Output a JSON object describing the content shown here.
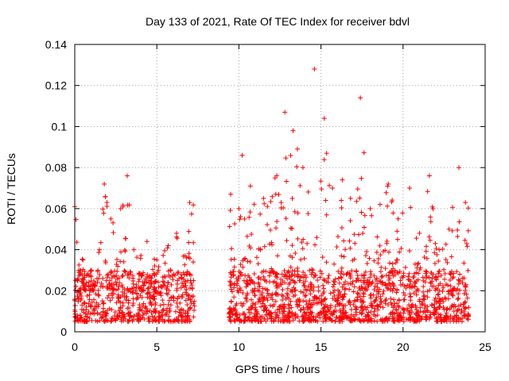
{
  "chart_data": {
    "type": "scatter",
    "title": "Day 133 of 2021, Rate Of TEC Index for receiver bdvl",
    "xlabel": "GPS time / hours",
    "ylabel": "ROTI / TECUs",
    "xlim": [
      0,
      24
    ],
    "ylim": [
      0,
      0.14
    ],
    "xticks": [
      0,
      5,
      10,
      15,
      20,
      25
    ],
    "xtick_labels": [
      "0",
      "5",
      "10",
      "15",
      "20",
      "25"
    ],
    "yticks": [
      0,
      0.02,
      0.04,
      0.06,
      0.08,
      0.1,
      0.12,
      0.14
    ],
    "ytick_labels": [
      "0",
      "0.02",
      "0.04",
      "0.06",
      "0.08",
      "0.1",
      "0.12",
      "0.14"
    ],
    "grid": true,
    "marker": "plus",
    "color": "#ff0000",
    "data_gap_hours": [
      7.3,
      9.4
    ],
    "approx_envelope": [
      {
        "x": 0.0,
        "y": 0.061
      },
      {
        "x": 0.5,
        "y": 0.035
      },
      {
        "x": 1.0,
        "y": 0.03
      },
      {
        "x": 1.5,
        "y": 0.04
      },
      {
        "x": 1.8,
        "y": 0.072
      },
      {
        "x": 2.2,
        "y": 0.055
      },
      {
        "x": 2.8,
        "y": 0.06
      },
      {
        "x": 3.2,
        "y": 0.076
      },
      {
        "x": 3.6,
        "y": 0.04
      },
      {
        "x": 4.4,
        "y": 0.044
      },
      {
        "x": 5.0,
        "y": 0.035
      },
      {
        "x": 5.7,
        "y": 0.042
      },
      {
        "x": 6.2,
        "y": 0.048
      },
      {
        "x": 6.8,
        "y": 0.036
      },
      {
        "x": 7.0,
        "y": 0.063
      },
      {
        "x": 9.5,
        "y": 0.067
      },
      {
        "x": 10.0,
        "y": 0.06
      },
      {
        "x": 10.2,
        "y": 0.086
      },
      {
        "x": 10.7,
        "y": 0.071
      },
      {
        "x": 11.5,
        "y": 0.065
      },
      {
        "x": 12.2,
        "y": 0.075
      },
      {
        "x": 12.8,
        "y": 0.107
      },
      {
        "x": 13.3,
        "y": 0.098
      },
      {
        "x": 13.9,
        "y": 0.08
      },
      {
        "x": 14.6,
        "y": 0.128
      },
      {
        "x": 15.2,
        "y": 0.104
      },
      {
        "x": 15.7,
        "y": 0.07
      },
      {
        "x": 16.3,
        "y": 0.074
      },
      {
        "x": 16.8,
        "y": 0.065
      },
      {
        "x": 17.4,
        "y": 0.114
      },
      {
        "x": 18.0,
        "y": 0.06
      },
      {
        "x": 18.6,
        "y": 0.062
      },
      {
        "x": 19.1,
        "y": 0.072
      },
      {
        "x": 19.7,
        "y": 0.055
      },
      {
        "x": 20.4,
        "y": 0.07
      },
      {
        "x": 21.0,
        "y": 0.048
      },
      {
        "x": 21.6,
        "y": 0.076
      },
      {
        "x": 22.2,
        "y": 0.04
      },
      {
        "x": 22.8,
        "y": 0.05
      },
      {
        "x": 23.4,
        "y": 0.08
      },
      {
        "x": 23.8,
        "y": 0.063
      }
    ]
  }
}
